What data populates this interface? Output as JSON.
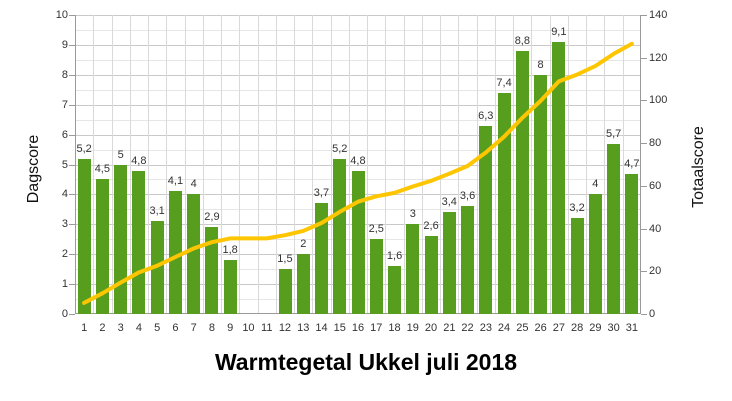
{
  "title": "Warmtegetal Ukkel juli 2018",
  "axes": {
    "left": {
      "title": "Dagscore",
      "ticks": [
        "0",
        "1",
        "2",
        "3",
        "4",
        "5",
        "6",
        "7",
        "8",
        "9",
        "10"
      ]
    },
    "right": {
      "title": "Totaalscore",
      "ticks": [
        "0",
        "20",
        "40",
        "60",
        "80",
        "100",
        "120",
        "140"
      ]
    }
  },
  "colors": {
    "bar": "#589e1e",
    "line": "#fdc600",
    "grid_major": "#c9c9c9",
    "grid_minor": "#e6e6e6",
    "grid_vertical": "#d9d9d9",
    "axis": "#9a9a9a",
    "text": "#333333",
    "title": "#000000"
  },
  "chart_data": {
    "type": "bar",
    "title": "Warmtegetal Ukkel juli 2018",
    "categories": [
      "1",
      "2",
      "3",
      "4",
      "5",
      "6",
      "7",
      "8",
      "9",
      "10",
      "11",
      "12",
      "13",
      "14",
      "15",
      "16",
      "17",
      "18",
      "19",
      "20",
      "21",
      "22",
      "23",
      "24",
      "25",
      "26",
      "27",
      "28",
      "29",
      "30",
      "31"
    ],
    "series": [
      {
        "name": "Dagscore",
        "type": "bar",
        "axis": "left",
        "values": [
          5.2,
          4.5,
          5,
          4.8,
          3.1,
          4.1,
          4,
          2.9,
          1.8,
          null,
          null,
          1.5,
          2,
          3.7,
          5.2,
          4.8,
          2.5,
          1.6,
          3,
          2.6,
          3.4,
          3.6,
          6.3,
          7.4,
          8.8,
          8,
          9.1,
          3.2,
          4,
          5.7,
          4.7
        ],
        "data_labels": [
          "5,2",
          "4,5",
          "5",
          "4,8",
          "3,1",
          "4,1",
          "4",
          "2,9",
          "1,8",
          "",
          "",
          "1,5",
          "2",
          "3,7",
          "5,2",
          "4,8",
          "2,5",
          "1,6",
          "3",
          "2,6",
          "3,4",
          "3,6",
          "6,3",
          "7,4",
          "8,8",
          "8",
          "9,1",
          "3,2",
          "4",
          "5,7",
          "4,7"
        ]
      },
      {
        "name": "Totaalscore",
        "type": "line",
        "axis": "right",
        "values": [
          5.2,
          9.7,
          14.7,
          19.5,
          22.6,
          26.7,
          30.7,
          33.6,
          35.4,
          35.4,
          35.4,
          36.9,
          38.9,
          42.6,
          47.8,
          52.6,
          55.1,
          56.7,
          59.7,
          62.3,
          65.7,
          69.3,
          75.6,
          83,
          91.8,
          99.8,
          108.9,
          112.1,
          116.1,
          121.8,
          126.5
        ]
      }
    ],
    "xlabel": "",
    "ylabel_left": "Dagscore",
    "ylabel_right": "Totaalscore",
    "ylim_left": [
      0,
      10
    ],
    "ylim_right": [
      0,
      140
    ],
    "grid": true,
    "legend": false
  }
}
